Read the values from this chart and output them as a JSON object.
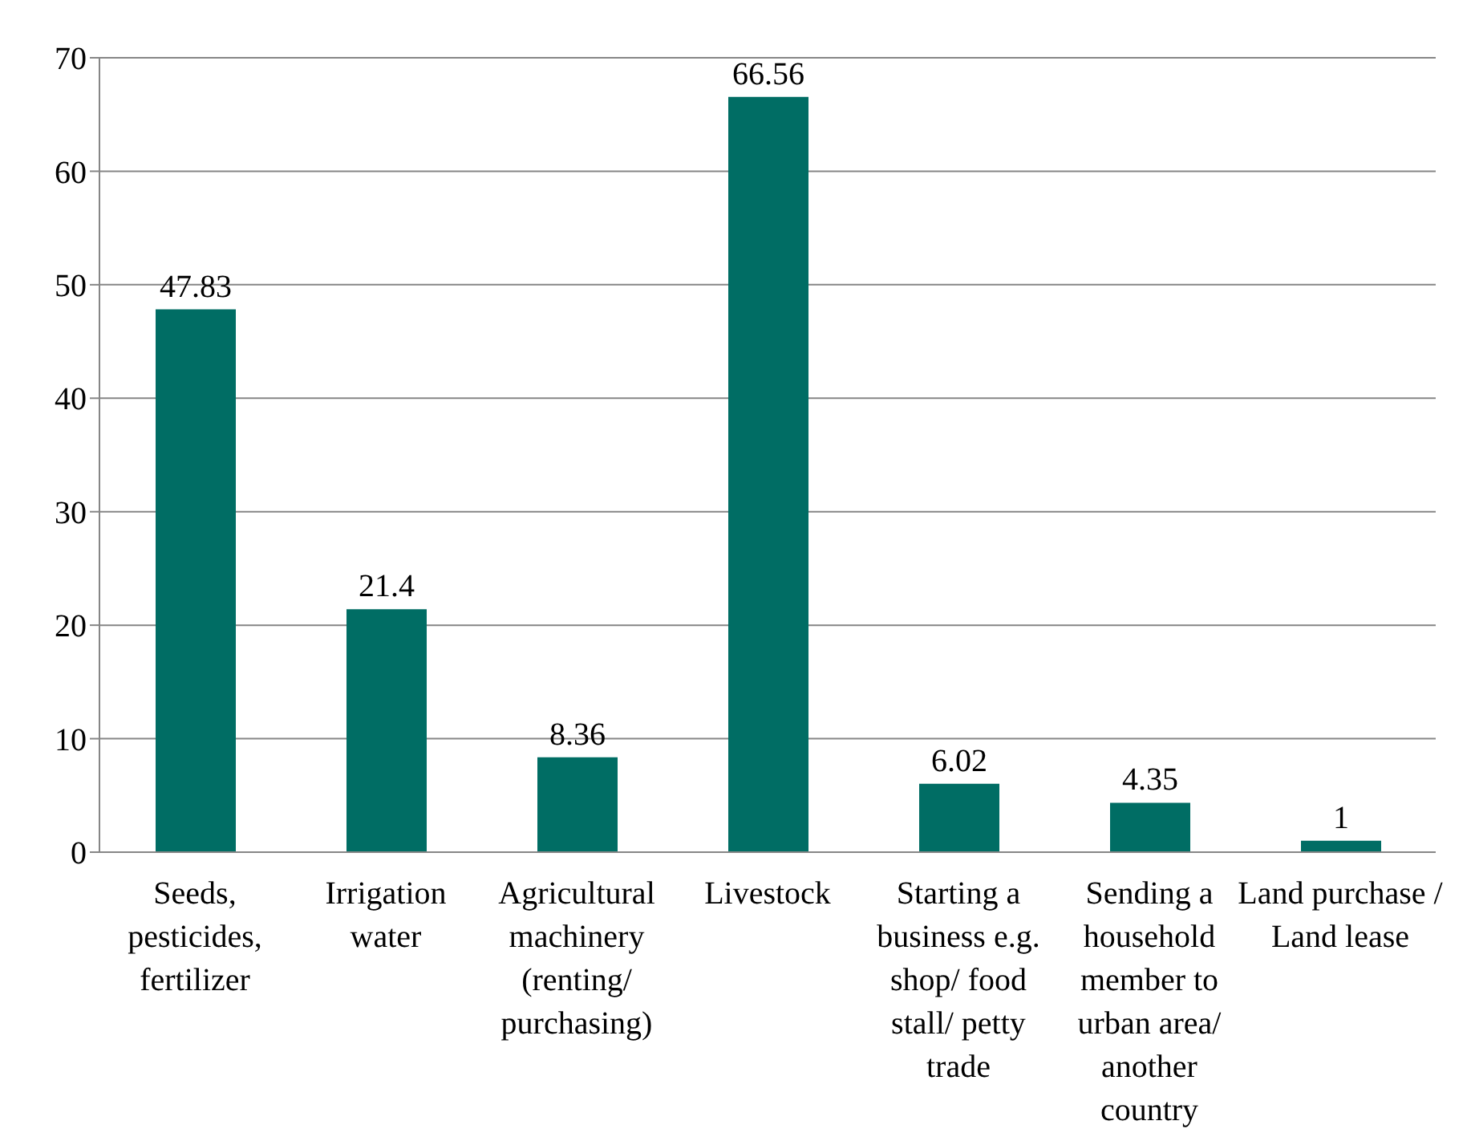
{
  "chart_data": {
    "type": "bar",
    "categories": [
      "Seeds, pesticides, fertilizer",
      "Irrigation water",
      "Agricultural machinery (renting/ purchasing)",
      "Livestock",
      "Starting a business e.g. shop/ food stall/ petty trade",
      "Sending a household member to urban area/ another country",
      "Land purchase / Land lease"
    ],
    "values": [
      47.83,
      21.4,
      8.36,
      66.56,
      6.02,
      4.35,
      1
    ],
    "color": "#006d64",
    "ylim": [
      0,
      70
    ],
    "yticks": [
      0,
      10,
      20,
      30,
      40,
      50,
      60,
      70
    ],
    "grid": "y",
    "data_labels": true
  }
}
